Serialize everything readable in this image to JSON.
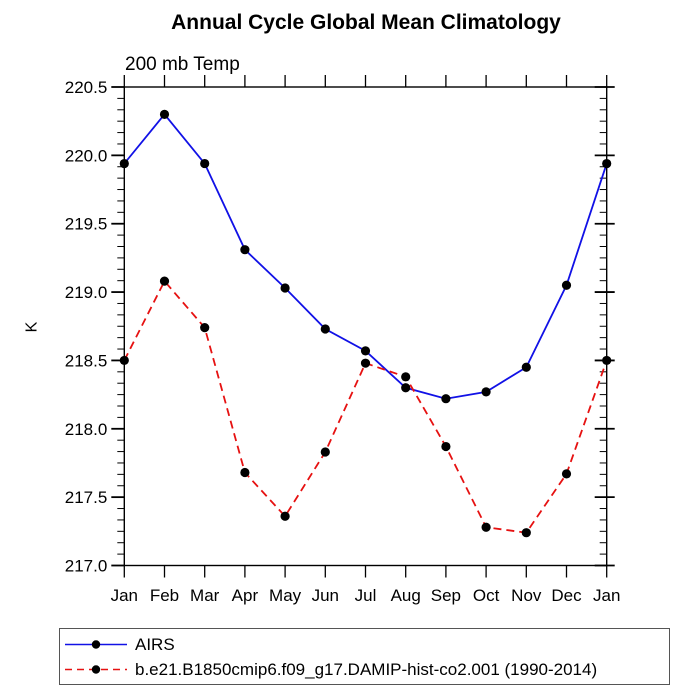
{
  "title": "Annual Cycle Global Mean Climatology",
  "subtitle": "200 mb Temp",
  "ylabel": "K",
  "chart_data": {
    "type": "line",
    "title": "Annual Cycle Global Mean Climatology",
    "subtitle": "200 mb Temp",
    "xlabel": "",
    "ylabel": "K",
    "categories": [
      "Jan",
      "Feb",
      "Mar",
      "Apr",
      "May",
      "Jun",
      "Jul",
      "Aug",
      "Sep",
      "Oct",
      "Nov",
      "Dec",
      "Jan"
    ],
    "ylim": [
      217.0,
      220.5
    ],
    "ytick_step": 0.5,
    "ytick_labels": [
      "220.5",
      "220.0",
      "219.5",
      "219.0",
      "218.5",
      "218.0",
      "217.5",
      "217.0"
    ],
    "y_minor_per_interval": 5,
    "grid": false,
    "legend_position": "bottom-left-box",
    "axis_color": "#000000",
    "marker_color": "#000000",
    "series": [
      {
        "name": "AIRS",
        "color": "#1111E6",
        "style": "solid",
        "marker": "filled-circle",
        "values": [
          219.94,
          220.3,
          219.94,
          219.31,
          219.03,
          218.73,
          218.57,
          218.3,
          218.22,
          218.27,
          218.45,
          219.05,
          219.94
        ]
      },
      {
        "name": "b.e21.B1850cmip6.f09_g17.DAMIP-hist-co2.001 (1990-2014)",
        "color": "#E61111",
        "style": "dashed",
        "marker": "filled-circle",
        "values": [
          218.5,
          219.08,
          218.74,
          217.68,
          217.36,
          217.83,
          218.48,
          218.38,
          217.87,
          217.28,
          217.24,
          217.67,
          218.5
        ]
      }
    ]
  }
}
